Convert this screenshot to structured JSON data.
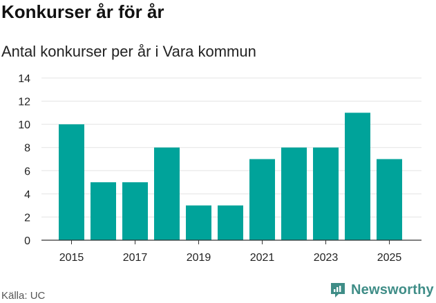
{
  "header": {
    "title": "Konkurser år för år",
    "subtitle": "Antal konkurser per år i Vara kommun"
  },
  "footer": {
    "source": "Källa: UC",
    "brand": "Newsworthy",
    "brand_icon": "newsworthy-chart-logo-icon",
    "brand_color": "#3f8d87"
  },
  "chart_data": {
    "type": "bar",
    "categories": [
      "2015",
      "2016",
      "2017",
      "2018",
      "2019",
      "2020",
      "2021",
      "2022",
      "2023",
      "2024",
      "2025"
    ],
    "values": [
      10,
      5,
      5,
      8,
      3,
      3,
      7,
      8,
      8,
      11,
      7
    ],
    "x_tick_labels": [
      "2015",
      "2017",
      "2019",
      "2021",
      "2023",
      "2025"
    ],
    "y_ticks": [
      0,
      2,
      4,
      6,
      8,
      10,
      12,
      14
    ],
    "ylim": [
      0,
      14
    ],
    "bar_color": "#00a39a",
    "grid": true
  }
}
